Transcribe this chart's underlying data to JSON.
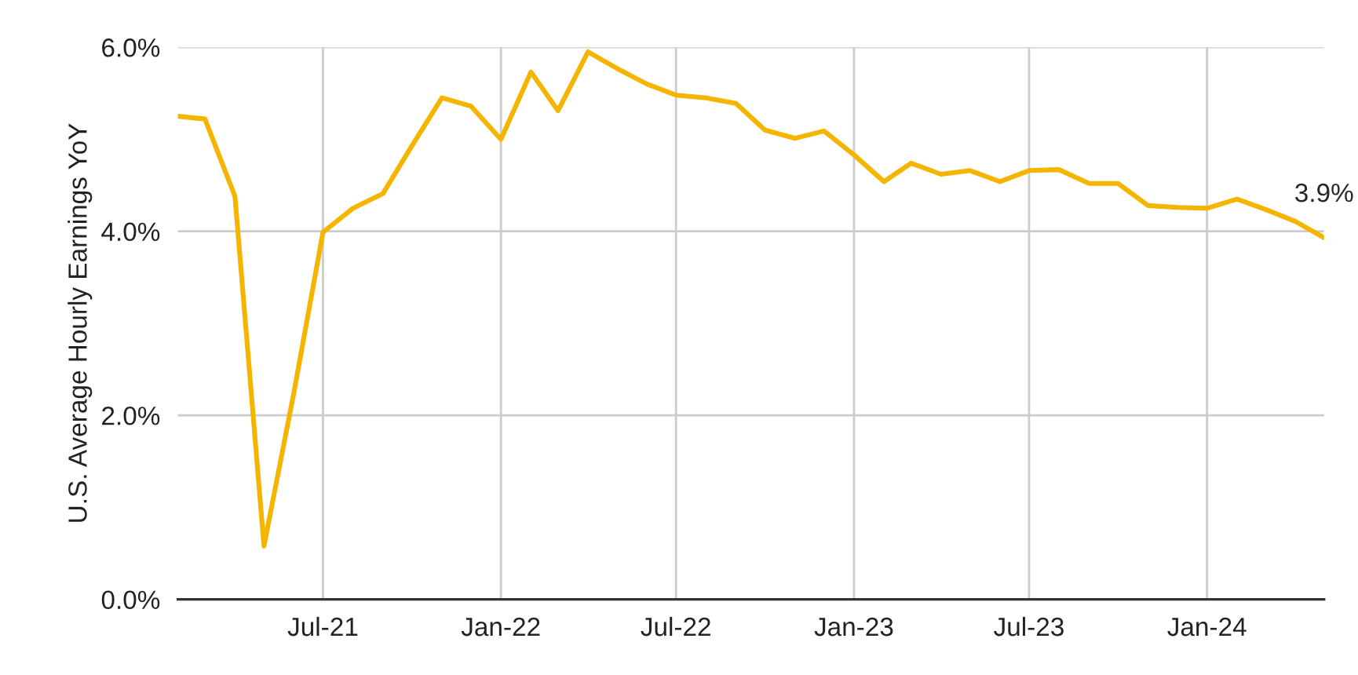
{
  "chart_data": {
    "type": "line",
    "ylabel": "U.S. Average Hourly Earnings YoY",
    "x": [
      "2021-02",
      "2021-03",
      "2021-04",
      "2021-05",
      "2021-06",
      "2021-07",
      "2021-08",
      "2021-09",
      "2021-10",
      "2021-11",
      "2021-12",
      "2022-01",
      "2022-02",
      "2022-03",
      "2022-04",
      "2022-05",
      "2022-06",
      "2022-07",
      "2022-08",
      "2022-09",
      "2022-10",
      "2022-11",
      "2022-12",
      "2023-01",
      "2023-02",
      "2023-03",
      "2023-04",
      "2023-05",
      "2023-06",
      "2023-07",
      "2023-08",
      "2023-09",
      "2023-10",
      "2023-11",
      "2023-12",
      "2024-01",
      "2024-02",
      "2024-03",
      "2024-04",
      "2024-05"
    ],
    "series": [
      {
        "color": "#f4b400",
        "values": [
          5.25,
          5.22,
          4.38,
          0.58,
          2.25,
          3.99,
          4.25,
          4.41,
          4.93,
          5.45,
          5.36,
          5.0,
          5.73,
          5.31,
          5.95,
          5.77,
          5.6,
          5.48,
          5.45,
          5.39,
          5.1,
          5.01,
          5.09,
          4.83,
          4.54,
          4.74,
          4.62,
          4.66,
          4.54,
          4.66,
          4.67,
          4.52,
          4.52,
          4.28,
          4.26,
          4.25,
          4.35,
          4.24,
          4.11,
          3.93
        ]
      }
    ],
    "xlim": [
      "2021-02",
      "2024-05"
    ],
    "xticks": [
      {
        "value": "2021-07",
        "label": "Jul-21"
      },
      {
        "value": "2022-01",
        "label": "Jan-22"
      },
      {
        "value": "2022-07",
        "label": "Jul-22"
      },
      {
        "value": "2023-01",
        "label": "Jan-23"
      },
      {
        "value": "2023-07",
        "label": "Jul-23"
      },
      {
        "value": "2024-01",
        "label": "Jan-24"
      }
    ],
    "ylim": [
      0,
      6
    ],
    "yticks": [
      {
        "value": 0,
        "label": "0.0%"
      },
      {
        "value": 2,
        "label": "2.0%"
      },
      {
        "value": 4,
        "label": "4.0%"
      },
      {
        "value": 6,
        "label": "6.0%"
      }
    ],
    "annotations": [
      {
        "text": "3.9%",
        "x": "2024-05",
        "y": 3.93
      }
    ],
    "grid": true,
    "marker": "none",
    "line_style": "solid"
  }
}
